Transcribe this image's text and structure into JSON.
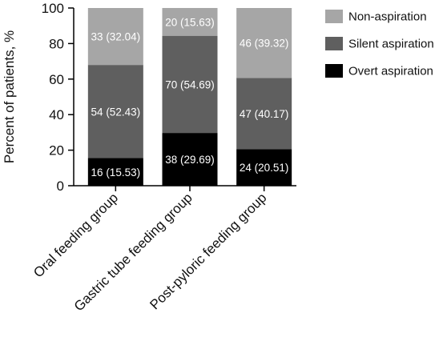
{
  "chart_data": {
    "type": "bar",
    "stacked": true,
    "categories": [
      "Oral feeding group",
      "Gastric tube feeding group",
      "Post-pyloric feeding group"
    ],
    "series": [
      {
        "name": "Overt aspiration",
        "color": "#000000",
        "values": [
          15.53,
          29.69,
          20.51
        ],
        "labels": [
          "16 (15.53)",
          "38 (29.69)",
          "24 (20.51)"
        ]
      },
      {
        "name": "Silent aspiration",
        "color": "#5f5f5f",
        "values": [
          52.43,
          54.69,
          40.17
        ],
        "labels": [
          "54 (52.43)",
          "70 (54.69)",
          "47 (40.17)"
        ]
      },
      {
        "name": "Non-aspiration",
        "color": "#a6a6a6",
        "values": [
          32.04,
          15.63,
          39.32
        ],
        "labels": [
          "33 (32.04)",
          "20 (15.63)",
          "46 (39.32)"
        ]
      }
    ],
    "legend_order": [
      "Non-aspiration",
      "Silent aspiration",
      "Overt aspiration"
    ],
    "ylabel": "Percent of patients, %",
    "xlabel": "",
    "ylim": [
      0,
      100
    ],
    "yticks": [
      "0",
      "20",
      "40",
      "60",
      "80",
      "100"
    ],
    "legend_position": "top-right",
    "grid": false
  }
}
